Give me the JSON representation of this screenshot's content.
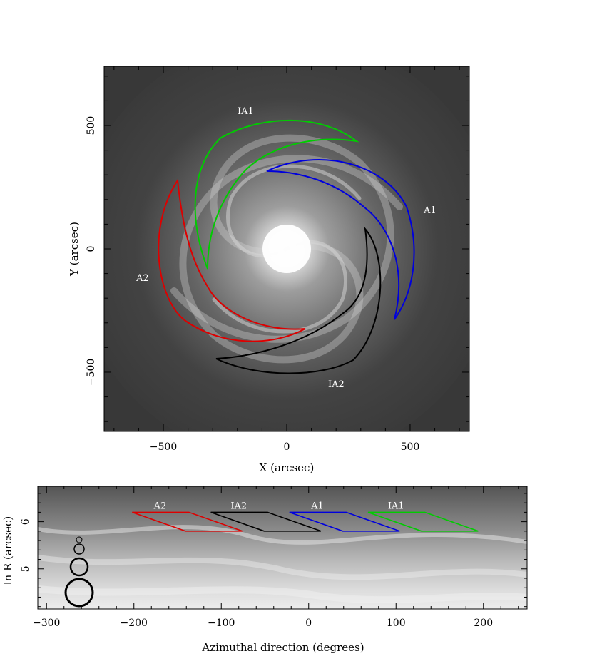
{
  "chart_data": [
    {
      "type": "image",
      "xlabel": "X (arcsec)",
      "ylabel": "Y (arcsec)",
      "xlim": [
        -740,
        740
      ],
      "ylim": [
        -740,
        740
      ],
      "xticks": [
        -500,
        0,
        500
      ],
      "yticks": [
        500,
        0,
        -500
      ],
      "xtick_labels": [
        "−500",
        "0",
        "500"
      ],
      "ytick_labels": [
        "500",
        "0",
        "−500"
      ],
      "annotations": [
        {
          "text": "IA1",
          "color": "#ffffff"
        },
        {
          "text": "A1",
          "color": "#ffffff"
        },
        {
          "text": "A2",
          "color": "#ffffff"
        },
        {
          "text": "IA2",
          "color": "#ffffff"
        }
      ],
      "region_colors": {
        "A1": "#0000dd",
        "A2": "#dd0000",
        "IA1": "#00cc00",
        "IA2": "#000000"
      }
    },
    {
      "type": "image",
      "xlabel": "Azimuthal direction (degrees)",
      "ylabel": "ln R (arcsec)",
      "xlim": [
        -310,
        250
      ],
      "ylim": [
        4.15,
        6.75
      ],
      "xticks": [
        -300,
        -200,
        -100,
        0,
        100,
        200
      ],
      "yticks": [
        5,
        6
      ],
      "xtick_labels": [
        "−300",
        "−200",
        "−100",
        "0",
        "100",
        "200"
      ],
      "ytick_labels": [
        "5",
        "6"
      ],
      "regions": [
        {
          "label": "A2",
          "color": "#dd0000"
        },
        {
          "label": "IA2",
          "color": "#000000"
        },
        {
          "label": "A1",
          "color": "#0000dd"
        },
        {
          "label": "IA1",
          "color": "#00cc00"
        }
      ]
    }
  ]
}
